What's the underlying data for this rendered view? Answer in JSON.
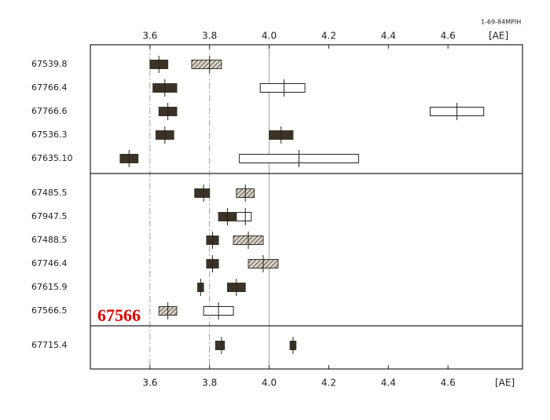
{
  "chart_data": {
    "type": "range",
    "header": "1-69-84MPIH",
    "axis_unit": "[AE]",
    "annotation": "67566",
    "xlim": [
      3.4,
      4.85
    ],
    "xticks": [
      3.6,
      3.8,
      4.0,
      4.2,
      4.4,
      4.6
    ],
    "xgrid": [
      3.6,
      3.8,
      4.0
    ],
    "colors": {
      "dark": "#3b3326",
      "hatched": "#8a8478",
      "open": "#ffffff"
    },
    "groups": [
      {
        "rows": [
          {
            "label": "67539.8",
            "boxes": [
              {
                "low": 3.6,
                "high": 3.66,
                "center": 3.63,
                "style": "dark"
              },
              {
                "low": 3.74,
                "high": 3.84,
                "center": 3.8,
                "style": "hatched"
              }
            ]
          },
          {
            "label": "67766.4",
            "boxes": [
              {
                "low": 3.61,
                "high": 3.69,
                "center": 3.65,
                "style": "dark"
              },
              {
                "low": 3.97,
                "high": 4.12,
                "center": 4.05,
                "style": "open"
              }
            ]
          },
          {
            "label": "67766.6",
            "boxes": [
              {
                "low": 3.63,
                "high": 3.69,
                "center": 3.66,
                "style": "dark"
              },
              {
                "low": 4.54,
                "high": 4.72,
                "center": 4.63,
                "style": "open"
              }
            ]
          },
          {
            "label": "67536.3",
            "boxes": [
              {
                "low": 3.62,
                "high": 3.68,
                "center": 3.65,
                "style": "dark"
              },
              {
                "low": 4.0,
                "high": 4.08,
                "center": 4.04,
                "style": "dark"
              }
            ]
          },
          {
            "label": "67635.10",
            "boxes": [
              {
                "low": 3.5,
                "high": 3.56,
                "center": 3.53,
                "style": "dark"
              },
              {
                "low": 3.9,
                "high": 4.3,
                "center": 4.1,
                "style": "open"
              }
            ]
          }
        ]
      },
      {
        "rows": [
          {
            "label": "67485.5",
            "boxes": [
              {
                "low": 3.75,
                "high": 3.8,
                "center": 3.78,
                "style": "dark"
              },
              {
                "low": 3.89,
                "high": 3.95,
                "center": 3.92,
                "style": "hatched"
              }
            ]
          },
          {
            "label": "67947.5",
            "boxes": [
              {
                "low": 3.83,
                "high": 3.89,
                "center": 3.86,
                "style": "dark"
              },
              {
                "low": 3.89,
                "high": 3.94,
                "center": 3.92,
                "style": "open"
              }
            ]
          },
          {
            "label": "67488.5",
            "boxes": [
              {
                "low": 3.79,
                "high": 3.83,
                "center": 3.81,
                "style": "dark"
              },
              {
                "low": 3.88,
                "high": 3.98,
                "center": 3.93,
                "style": "hatched"
              }
            ]
          },
          {
            "label": "67746.4",
            "boxes": [
              {
                "low": 3.79,
                "high": 3.83,
                "center": 3.81,
                "style": "dark"
              },
              {
                "low": 3.93,
                "high": 4.03,
                "center": 3.98,
                "style": "hatched"
              }
            ]
          },
          {
            "label": "67615.9",
            "boxes": [
              {
                "low": 3.76,
                "high": 3.78,
                "center": 3.77,
                "style": "dark"
              },
              {
                "low": 3.86,
                "high": 3.92,
                "center": 3.89,
                "style": "dark"
              }
            ]
          },
          {
            "label": "67566.5",
            "boxes": [
              {
                "low": 3.63,
                "high": 3.69,
                "center": 3.66,
                "style": "hatched"
              },
              {
                "low": 3.78,
                "high": 3.88,
                "center": 3.83,
                "style": "open"
              }
            ]
          }
        ]
      },
      {
        "rows": [
          {
            "label": "67715.4",
            "boxes": [
              {
                "low": 3.82,
                "high": 3.85,
                "center": 3.84,
                "style": "dark"
              },
              {
                "low": 4.07,
                "high": 4.09,
                "center": 4.08,
                "style": "dark"
              }
            ]
          }
        ]
      }
    ]
  }
}
